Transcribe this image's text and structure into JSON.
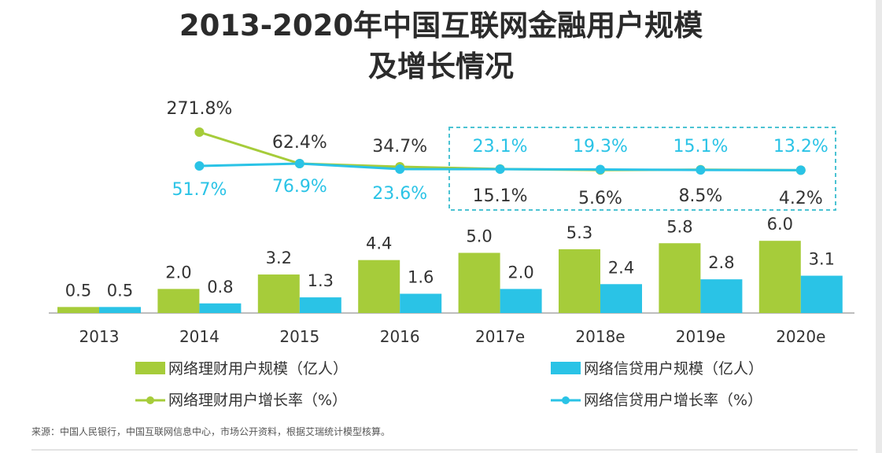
{
  "title_line1": "2013-2020年中国互联网金融用户规模",
  "title_line2": "及增长情况",
  "source": "来源：中国人民银行，中国互联网信息中心，市场公开资料，根据艾瑞统计模型核算。",
  "colors": {
    "licai": "#a6cc3a",
    "xindai": "#2ac3e6",
    "highlight_box": "#4cc3d3",
    "text": "#333333"
  },
  "legend": {
    "licai_bar": "网络理财用户规模（亿人）",
    "xindai_bar": "网络信贷用户规模（亿人）",
    "licai_line": "网络理财用户增长率（%）",
    "xindai_line": "网络信贷用户增长率（%）"
  },
  "chart_data": {
    "type": "bar",
    "categories": [
      "2013",
      "2014",
      "2015",
      "2016",
      "2017e",
      "2018e",
      "2019e",
      "2020e"
    ],
    "series": [
      {
        "name": "网络理财用户规模（亿人）",
        "type": "bar",
        "values": [
          0.5,
          2.0,
          3.2,
          4.4,
          5.0,
          5.3,
          5.8,
          6.0
        ],
        "labels": [
          "0.5",
          "2.0",
          "3.2",
          "4.4",
          "5.0",
          "5.3",
          "5.8",
          "6.0"
        ]
      },
      {
        "name": "网络信贷用户规模（亿人）",
        "type": "bar",
        "values": [
          0.5,
          0.8,
          1.3,
          1.6,
          2.0,
          2.4,
          2.8,
          3.1
        ],
        "labels": [
          "0.5",
          "0.8",
          "1.3",
          "1.6",
          "2.0",
          "2.4",
          "2.8",
          "3.1"
        ]
      },
      {
        "name": "网络理财用户增长率（%）",
        "type": "line",
        "values": [
          null,
          271.8,
          62.4,
          34.7,
          15.1,
          5.6,
          8.5,
          4.2
        ],
        "labels": [
          "",
          "271.8%",
          "62.4%",
          "34.7%",
          "15.1%",
          "5.6%",
          "8.5%",
          "4.2%"
        ]
      },
      {
        "name": "网络信贷用户增长率（%）",
        "type": "line",
        "values": [
          null,
          51.7,
          76.9,
          23.6,
          23.1,
          19.3,
          15.1,
          13.2
        ],
        "labels": [
          "",
          "51.7%",
          "76.9%",
          "23.6%",
          "23.1%",
          "19.3%",
          "15.1%",
          "13.2%"
        ]
      }
    ],
    "forecast_highlight": [
      "2017e",
      "2018e",
      "2019e",
      "2020e"
    ]
  }
}
